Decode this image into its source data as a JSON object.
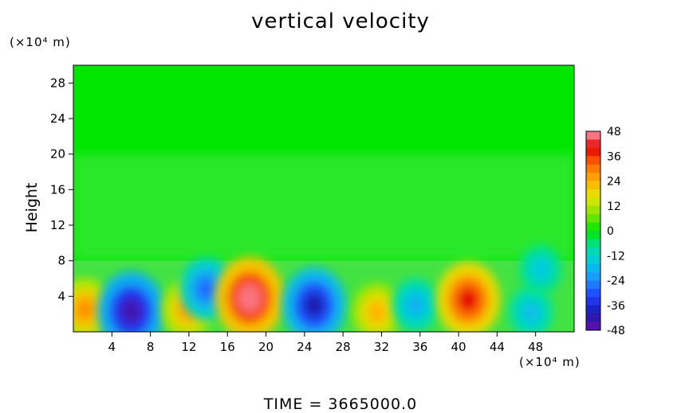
{
  "chart_data": {
    "type": "heatmap",
    "title": "vertical velocity",
    "ylabel": "Height",
    "y_unit": "(×10⁴ m)",
    "x_unit": "(×10⁴ m)",
    "footer": "TIME  =  3665000.0",
    "xlim": [
      0,
      52
    ],
    "ylim": [
      0,
      30
    ],
    "x_ticks": [
      4,
      8,
      12,
      16,
      20,
      24,
      28,
      32,
      36,
      40,
      44,
      48
    ],
    "y_ticks": [
      4,
      8,
      12,
      16,
      20,
      24,
      28
    ],
    "colorbar": {
      "ticks": [
        48,
        36,
        24,
        12,
        0,
        -12,
        -24,
        -36,
        -48
      ],
      "min": -48,
      "max": 48
    },
    "cells": [
      {
        "x": 1.2,
        "y": 2.5,
        "v": 28
      },
      {
        "x": 6.0,
        "y": 2.3,
        "v": -44
      },
      {
        "x": 11.8,
        "y": 2.5,
        "v": 26
      },
      {
        "x": 13.8,
        "y": 4.8,
        "v": -28
      },
      {
        "x": 18.3,
        "y": 3.8,
        "v": 46
      },
      {
        "x": 25.0,
        "y": 3.0,
        "v": -40
      },
      {
        "x": 31.5,
        "y": 2.2,
        "v": 24
      },
      {
        "x": 35.5,
        "y": 3.0,
        "v": -20
      },
      {
        "x": 41.0,
        "y": 3.6,
        "v": 40
      },
      {
        "x": 47.5,
        "y": 2.2,
        "v": -18
      },
      {
        "x": 48.5,
        "y": 7.0,
        "v": -16
      }
    ]
  }
}
